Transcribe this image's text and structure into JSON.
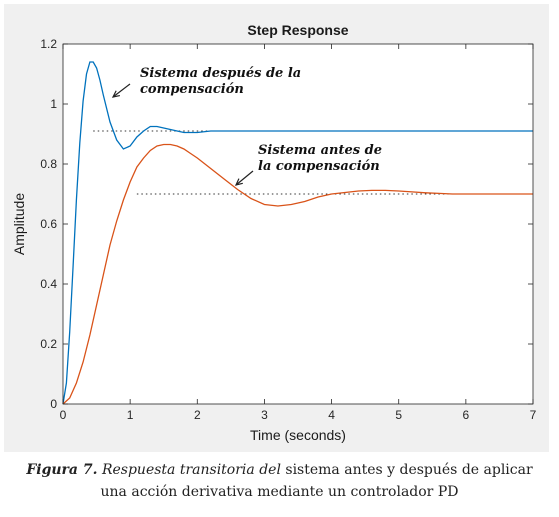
{
  "chart_data": {
    "type": "line",
    "title": "Step Response",
    "xlabel": "Time (seconds)",
    "ylabel": "Amplitude",
    "xlim": [
      0,
      7
    ],
    "ylim": [
      0,
      1.2
    ],
    "xticks": [
      "0",
      "1",
      "2",
      "3",
      "4",
      "5",
      "6",
      "7"
    ],
    "yticks": [
      "0",
      "0.2",
      "0.4",
      "0.6",
      "0.8",
      "1",
      "1.2"
    ],
    "grid": false,
    "series": [
      {
        "name": "Sistema después de la compensación",
        "color": "#0072bd",
        "x": [
          0,
          0.05,
          0.1,
          0.15,
          0.2,
          0.25,
          0.3,
          0.35,
          0.4,
          0.45,
          0.5,
          0.55,
          0.6,
          0.7,
          0.8,
          0.9,
          1.0,
          1.1,
          1.2,
          1.3,
          1.4,
          1.5,
          1.6,
          1.7,
          1.8,
          1.9,
          2.0,
          2.2,
          2.4,
          2.6,
          3.0,
          4.0,
          5.0,
          6.0,
          7.0
        ],
        "y": [
          0,
          0.07,
          0.24,
          0.46,
          0.68,
          0.87,
          1.01,
          1.1,
          1.14,
          1.14,
          1.12,
          1.08,
          1.03,
          0.94,
          0.88,
          0.85,
          0.86,
          0.89,
          0.91,
          0.925,
          0.925,
          0.92,
          0.915,
          0.91,
          0.905,
          0.905,
          0.905,
          0.91,
          0.91,
          0.91,
          0.91,
          0.91,
          0.91,
          0.91,
          0.91
        ]
      },
      {
        "name": "Sistema antes de la compensación",
        "color": "#d95319",
        "x": [
          0,
          0.1,
          0.2,
          0.3,
          0.4,
          0.5,
          0.6,
          0.7,
          0.8,
          0.9,
          1.0,
          1.1,
          1.2,
          1.3,
          1.4,
          1.5,
          1.6,
          1.7,
          1.8,
          1.9,
          2.0,
          2.2,
          2.4,
          2.6,
          2.8,
          3.0,
          3.2,
          3.4,
          3.6,
          3.8,
          4.0,
          4.2,
          4.4,
          4.6,
          4.8,
          5.0,
          5.2,
          5.4,
          5.6,
          5.8,
          6.0,
          6.3,
          6.6,
          7.0
        ],
        "y": [
          0,
          0.02,
          0.07,
          0.14,
          0.23,
          0.33,
          0.43,
          0.53,
          0.61,
          0.68,
          0.74,
          0.79,
          0.82,
          0.845,
          0.86,
          0.865,
          0.865,
          0.86,
          0.85,
          0.835,
          0.82,
          0.785,
          0.75,
          0.715,
          0.685,
          0.665,
          0.66,
          0.665,
          0.675,
          0.69,
          0.7,
          0.705,
          0.71,
          0.712,
          0.712,
          0.71,
          0.707,
          0.704,
          0.702,
          0.7,
          0.7,
          0.7,
          0.7,
          0.7
        ]
      }
    ],
    "reference_lines": [
      {
        "y": 0.91,
        "style": "dotted",
        "color": "#333333",
        "x_start": 0.45
      },
      {
        "y": 0.7,
        "style": "dotted",
        "color": "#333333",
        "x_start": 1.1
      }
    ],
    "annotations": [
      {
        "line1": "Sistema después de la",
        "line2": "compensación"
      },
      {
        "line1": "Sistema antes de",
        "line2": "la compensación"
      }
    ]
  },
  "caption": {
    "figure_label": "Figura 7.",
    "italic_part": "Respuesta transitoria del",
    "rest_line1": " sistema antes y después de aplicar",
    "line2": "una acción derivativa mediante un controlador PD"
  }
}
